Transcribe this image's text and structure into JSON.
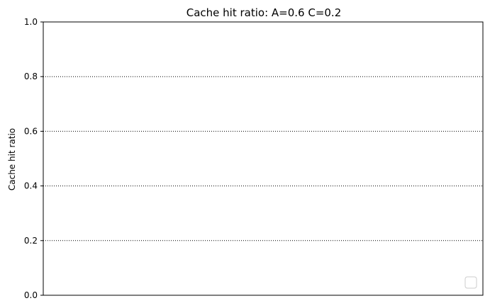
{
  "chart_data": {
    "type": "line",
    "title": "Cache hit ratio: A=0.6 C=0.2",
    "xlabel": "",
    "ylabel": "Cache hit ratio",
    "ylim": [
      0,
      1
    ],
    "yticks": [
      0.0,
      0.2,
      0.4,
      0.6,
      0.8,
      1.0
    ],
    "ytick_labels": [
      "0.0",
      "0.2",
      "0.4",
      "0.6",
      "0.8",
      "1.0"
    ],
    "xticks": [],
    "grid": "y-dotted",
    "legend_position": "lower-right",
    "series": []
  }
}
